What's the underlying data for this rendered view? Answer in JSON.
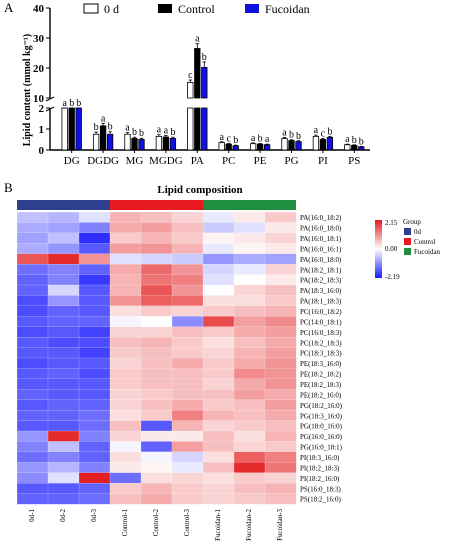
{
  "panel_a": {
    "label": "A",
    "ylabel": "Lipid content (mmol kg⁻¹)",
    "legend": [
      "0 d",
      "Control",
      "Fucoidan"
    ],
    "colors": {
      "d0": "#ffffff",
      "control": "#000000",
      "fucoidan": "#1010e0"
    }
  },
  "panel_b": {
    "label": "B",
    "title": "Lipid composition",
    "group_legend_title": "Group",
    "group_legend": [
      "0d",
      "Control",
      "Fucoidan"
    ],
    "group_colors": [
      "#2e3f8f",
      "#e8191f",
      "#1f8f3f"
    ],
    "scale_labels": [
      "2.15",
      "0.00",
      "-2.19"
    ],
    "colors": {
      "high": "#e31a1c",
      "mid": "#ffffff",
      "low": "#1a1aff"
    }
  },
  "chart_data": [
    {
      "type": "bar",
      "categories": [
        "DG",
        "DGDG",
        "MG",
        "MGDG",
        "PA",
        "PC",
        "PE",
        "PG",
        "PI",
        "PS"
      ],
      "ylabel": "Lipid content (mmol kg⁻¹)",
      "axis_segments": {
        "lower": [
          0,
          2
        ],
        "upper": [
          10,
          40
        ]
      },
      "yticks_lower": [
        0,
        1,
        2
      ],
      "yticks_upper": [
        10,
        20,
        30,
        40
      ],
      "series": [
        {
          "name": "0 d",
          "values": [
            5.6,
            0.75,
            0.75,
            0.65,
            15.2,
            0.35,
            0.3,
            0.55,
            0.65,
            0.25
          ],
          "errors": [
            0.6,
            0.1,
            0.08,
            0.08,
            0.8,
            0.04,
            0.04,
            0.05,
            0.06,
            0.03
          ]
        },
        {
          "name": "Control",
          "values": [
            4.2,
            1.15,
            0.55,
            0.62,
            26.5,
            0.28,
            0.28,
            0.45,
            0.5,
            0.22
          ],
          "errors": [
            0.5,
            0.12,
            0.06,
            0.07,
            1.6,
            0.03,
            0.03,
            0.04,
            0.05,
            0.03
          ]
        },
        {
          "name": "Fucoidan",
          "values": [
            4.0,
            0.75,
            0.5,
            0.55,
            20.2,
            0.2,
            0.25,
            0.4,
            0.6,
            0.15
          ],
          "errors": [
            0.5,
            0.12,
            0.06,
            0.06,
            1.8,
            0.03,
            0.03,
            0.04,
            0.05,
            0.02
          ]
        }
      ],
      "letters": [
        [
          "a",
          "b",
          "b"
        ],
        [
          "b",
          "a",
          "b"
        ],
        [
          "a",
          "b",
          "b"
        ],
        [
          "a",
          "a",
          "b"
        ],
        [
          "c",
          "a",
          "b"
        ],
        [
          "a",
          "c",
          "b"
        ],
        [
          "a",
          "b",
          "a"
        ],
        [
          "a",
          "b",
          "b"
        ],
        [
          "a",
          "c",
          "b"
        ],
        [
          "a",
          "b",
          "b"
        ]
      ]
    },
    {
      "type": "heatmap",
      "title": "Lipid composition",
      "x": [
        "0d-1",
        "0d-2",
        "0d-3",
        "Control-1",
        "Control-2",
        "Control-3",
        "Fucoidan-1",
        "Fucoidan-2",
        "Fucoidan-3"
      ],
      "groups": [
        "0d",
        "0d",
        "0d",
        "Control",
        "Control",
        "Control",
        "Fucoidan",
        "Fucoidan",
        "Fucoidan"
      ],
      "y": [
        "PA(16:0_18:2)",
        "PA(16:0_18:0)",
        "PA(16:0_18:1)",
        "PA(16:0_16:1)",
        "PA(16:0_18:0)",
        "PA(18:2_18:1)",
        "PA(18:2_18:3)",
        "PA(18:3_16:0)",
        "PA(18:1_18:3)",
        "PC(16:0_18:2)",
        "PC(14:0_18:1)",
        "PC(16:0_18:3)",
        "PC(18:2_18:3)",
        "PC(18:3_18:3)",
        "PE(18:3_16:0)",
        "PE(18:2_18:2)",
        "PE(18:2_18:3)",
        "PE(18:2_16:0)",
        "PG(18:2_16:0)",
        "PG(18:3_16:0)",
        "PG(18:0_16:0)",
        "PG(16:0_16:0)",
        "PG(16:0_18:1)",
        "PI(18:3_16:0)",
        "PI(18:2_18:3)",
        "PI(18:2_16:0)",
        "PS(16:0_18:3)",
        "PS(18:2_16:0)"
      ],
      "scale_range": [
        -2.19,
        2.15
      ],
      "values": [
        [
          -0.6,
          -0.7,
          -0.3,
          0.7,
          0.6,
          0.4,
          -0.2,
          0.2,
          0.5
        ],
        [
          -0.8,
          -0.9,
          -1.2,
          0.8,
          0.9,
          0.6,
          -0.5,
          -0.3,
          0.2
        ],
        [
          -0.9,
          -0.6,
          -2.0,
          0.5,
          0.7,
          0.5,
          0.1,
          0.2,
          0.4
        ],
        [
          -0.8,
          -1.0,
          -1.6,
          0.9,
          1.0,
          0.7,
          -0.2,
          0.1,
          0.2
        ],
        [
          1.6,
          2.0,
          1.0,
          -0.3,
          -0.4,
          -0.5,
          -1.0,
          -0.8,
          -0.9
        ],
        [
          -1.4,
          -1.2,
          -1.5,
          0.8,
          1.4,
          1.0,
          -0.4,
          -0.2,
          0.4
        ],
        [
          -1.5,
          -1.2,
          -1.9,
          0.7,
          1.3,
          1.2,
          -0.3,
          0.0,
          0.2
        ],
        [
          -1.5,
          -0.4,
          -1.6,
          0.7,
          1.6,
          1.0,
          0.0,
          0.4,
          0.6
        ],
        [
          -1.7,
          -1.0,
          -1.6,
          1.0,
          1.5,
          1.4,
          0.3,
          0.3,
          0.5
        ],
        [
          -1.7,
          -1.5,
          -1.6,
          0.3,
          0.5,
          0.4,
          0.5,
          0.6,
          0.7
        ],
        [
          -1.6,
          -1.5,
          -1.5,
          -0.1,
          0.0,
          -1.1,
          1.7,
          0.9,
          1.1
        ],
        [
          -1.7,
          -1.6,
          -1.8,
          0.4,
          0.4,
          0.6,
          0.5,
          0.8,
          0.9
        ],
        [
          -1.6,
          -1.7,
          -1.7,
          0.6,
          0.7,
          0.5,
          0.3,
          0.6,
          0.8
        ],
        [
          -1.6,
          -1.6,
          -1.8,
          0.5,
          0.6,
          0.5,
          0.4,
          0.7,
          0.9
        ],
        [
          -1.7,
          -1.6,
          -1.6,
          0.4,
          0.6,
          0.8,
          0.5,
          0.8,
          1.0
        ],
        [
          -1.6,
          -1.5,
          -1.7,
          0.5,
          0.6,
          0.6,
          0.5,
          1.1,
          1.0
        ],
        [
          -1.6,
          -1.6,
          -1.6,
          0.5,
          0.6,
          0.6,
          0.4,
          0.8,
          1.0
        ],
        [
          -1.5,
          -1.6,
          -1.6,
          0.4,
          0.5,
          0.6,
          0.6,
          0.9,
          0.8
        ],
        [
          -1.6,
          -1.5,
          -1.5,
          0.4,
          0.6,
          0.8,
          0.5,
          0.6,
          0.9
        ],
        [
          -1.5,
          -1.5,
          -1.4,
          0.3,
          0.5,
          1.2,
          0.7,
          0.6,
          0.8
        ],
        [
          -1.6,
          -1.6,
          -1.4,
          0.6,
          -1.6,
          0.7,
          0.4,
          0.5,
          0.6
        ],
        [
          -1.0,
          2.0,
          -1.2,
          0.4,
          0.2,
          0.2,
          0.6,
          0.3,
          0.7
        ],
        [
          -1.2,
          -0.6,
          -1.5,
          -0.1,
          -1.5,
          0.9,
          0.6,
          0.4,
          0.5
        ],
        [
          -1.4,
          -1.2,
          -1.5,
          0.3,
          -0.1,
          -0.4,
          0.3,
          1.5,
          1.2
        ],
        [
          -1.0,
          -0.7,
          -1.2,
          0.2,
          0.1,
          -0.2,
          0.6,
          2.0,
          1.3
        ],
        [
          -1.1,
          -0.3,
          2.1,
          -1.4,
          0.3,
          0.4,
          0.3,
          0.5,
          0.4
        ],
        [
          -1.6,
          -1.6,
          -1.5,
          0.5,
          0.7,
          0.5,
          0.4,
          0.6,
          0.7
        ],
        [
          -1.5,
          -1.5,
          -1.4,
          0.6,
          0.8,
          0.5,
          0.4,
          0.5,
          0.6
        ]
      ]
    }
  ]
}
